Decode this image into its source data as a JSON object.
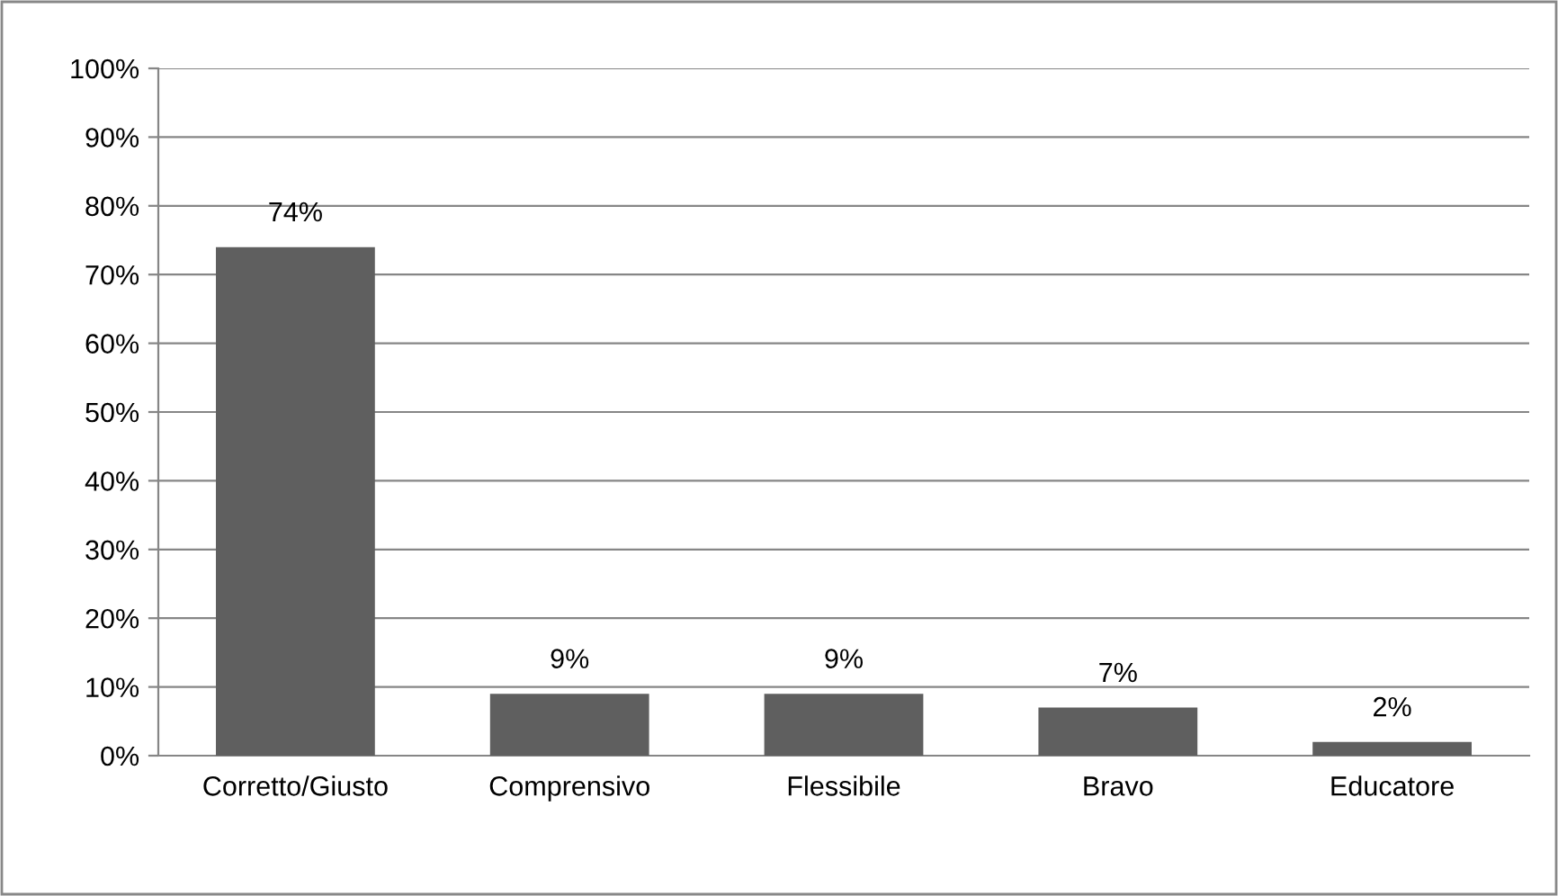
{
  "chart_data": {
    "type": "bar",
    "categories": [
      "Corretto/Giusto",
      "Comprensivo",
      "Flessibile",
      "Bravo",
      "Educatore"
    ],
    "values": [
      74,
      9,
      9,
      7,
      2
    ],
    "value_labels": [
      "74%",
      "9%",
      "9%",
      "7%",
      "2%"
    ],
    "color": "#5f5f5f",
    "ylim": [
      0,
      100
    ],
    "yticks": [
      {
        "value": 0,
        "label": "0%"
      },
      {
        "value": 10,
        "label": "10%"
      },
      {
        "value": 20,
        "label": "20%"
      },
      {
        "value": 30,
        "label": "30%"
      },
      {
        "value": 40,
        "label": "40%"
      },
      {
        "value": 50,
        "label": "50%"
      },
      {
        "value": 60,
        "label": "60%"
      },
      {
        "value": 70,
        "label": "70%"
      },
      {
        "value": 80,
        "label": "80%"
      },
      {
        "value": 90,
        "label": "90%"
      },
      {
        "value": 100,
        "label": "100%"
      }
    ],
    "grid": "y"
  }
}
